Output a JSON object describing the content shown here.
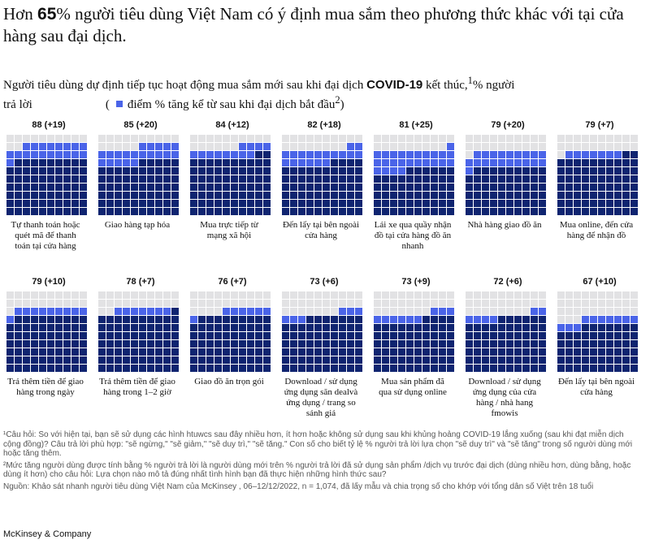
{
  "title": {
    "prefix": "Hơn ",
    "highlight": "65",
    "suffix": "% người tiêu dùng Việt Nam có ý định mua sắm theo phương thức khác với tại cửa hàng sau đại dịch."
  },
  "subtitle": {
    "part1": "Người tiêu dùng dự định tiếp tục hoạt động mua sắm mới sau khi đại dịch ",
    "keyword": "COVID-19",
    "part2": " kết thúc,",
    "sup1": "1",
    "part3": "% người",
    "line2": "trả lời",
    "legend_open": "(",
    "legend_text": "điểm % tăng kể từ sau khi đại dịch bắt đầu",
    "legend_sup": "2",
    "legend_close": ")"
  },
  "colors": {
    "existing": "#0f2470",
    "increase": "#4a64e8",
    "empty": "#e2e2e4"
  },
  "chart_data": {
    "type": "waffle",
    "grid": "10x10",
    "items": [
      {
        "label": "Tự thanh toán hoặc quét mã để thanh toán tại cửa hàng",
        "value": 88,
        "increase": 19,
        "top": "88 (+19)"
      },
      {
        "label": "Giao hàng tạp hóa",
        "value": 85,
        "increase": 20,
        "top": "85 (+20)"
      },
      {
        "label": "Mua trực tiếp từ mạng xã hội",
        "value": 84,
        "increase": 12,
        "top": "84 (+12)"
      },
      {
        "label": "Đến lấy tại bên ngoài cửa hàng",
        "value": 82,
        "increase": 18,
        "top": "82 (+18)"
      },
      {
        "label": "Lái xe qua quầy nhận đồ tại cửa hàng đồ ăn nhanh",
        "value": 81,
        "increase": 25,
        "top": "81 (+25)"
      },
      {
        "label": "Nhà hàng giao đồ ăn",
        "value": 79,
        "increase": 20,
        "top": "79 (+20)"
      },
      {
        "label": "Mua online, đến cửa hàng để nhận đồ",
        "value": 79,
        "increase": 7,
        "top": "79 (+7)"
      },
      {
        "label": "Trả thêm tiền để giao hàng trong ngày",
        "value": 79,
        "increase": 10,
        "top": "79 (+10)"
      },
      {
        "label": "Trả thêm tiền để giao hàng trong 1–2 giờ",
        "value": 78,
        "increase": 7,
        "top": "78 (+7)"
      },
      {
        "label": "Giao đồ ăn trọn gói",
        "value": 76,
        "increase": 7,
        "top": "76 (+7)"
      },
      {
        "label": "Download / sử dụng ứng dụng săn dealvà ứng dụng / trang so sánh giá",
        "value": 73,
        "increase": 6,
        "top": "73 (+6)"
      },
      {
        "label": "Mua sản phẩm đã qua sử dụng online",
        "value": 73,
        "increase": 9,
        "top": "73 (+9)"
      },
      {
        "label": "Download / sử dụng ứng dụng của cửa hàng / nhà hang fmowis",
        "value": 72,
        "increase": 6,
        "top": "72 (+6)"
      },
      {
        "label": "Đến lấy tại bên ngoài cửa hàng",
        "value": 67,
        "increase": 10,
        "top": "67 (+10)"
      }
    ]
  },
  "notes": [
    "¹Câu hỏi: So với hiện tại, bạn sẽ sử dụng các hình htuwcs sau đây nhiều hơn, ít hơn hoặc không sử dụng sau khi khủng hoảng COVID-19 lắng xuống (sau khi đạt miễn dịch cộng đồng)? Câu trả lời phù hợp: \"sẽ ngừng,\" \"sẽ giảm,\" \"sẽ duy trì,\" \"sẽ tăng.\" Con số cho biết tỷ lệ % người trả lời lựa chọn \"sẽ duy trì\" và \"sẽ tăng\" trong số người dùng mới hoặc tăng thêm.",
    "²Mức tăng người dùng được tính bằng % người trả lời là người dùng mới trên % người trả lời đã sử dụng sản phẩm /dịch vụ trước đại dịch (dùng nhiều hơn, dùng bằng, hoặc dùng ít hơn) cho câu hỏi: Lựa chọn nào mô tả đúng nhất tình hình bạn đã thực hiện những hình thức sau?",
    "Nguồn: Khảo sát nhanh người tiêu dùng Việt Nam của McKinsey , 06–12/12/2022, n = 1,074, đã lấy mẫu và chia trọng số cho khớp với tổng dân số Việt trên 18 tuổi"
  ],
  "brand": "McKinsey & Company"
}
